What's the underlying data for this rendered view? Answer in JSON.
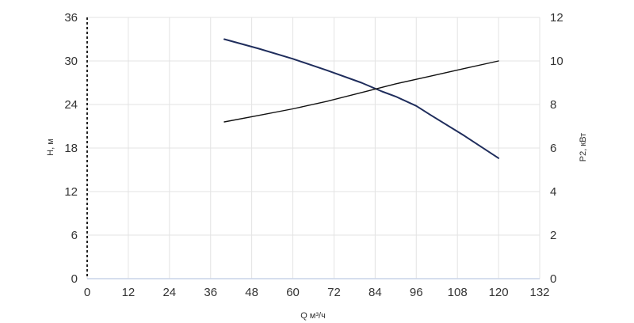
{
  "chart_data": {
    "type": "line",
    "xlabel": "Q м³/ч",
    "ylabel": "H, м",
    "y2label": "P2, кВт",
    "xlim": [
      0,
      132
    ],
    "ylim": [
      0,
      36
    ],
    "y2lim": [
      0,
      12
    ],
    "x_ticks": [
      "0",
      "12",
      "24",
      "36",
      "48",
      "60",
      "72",
      "84",
      "96",
      "108",
      "120",
      "132"
    ],
    "y_ticks": [
      "0",
      "6",
      "12",
      "18",
      "24",
      "30",
      "36"
    ],
    "y2_ticks": [
      "0",
      "2",
      "4",
      "6",
      "8",
      "10",
      "12"
    ],
    "grid": true,
    "series": [
      {
        "axis": "left",
        "color": "#1f2d5c",
        "x": [
          40,
          50,
          60,
          70,
          80,
          86,
          90,
          96,
          100,
          110,
          120
        ],
        "y": [
          33,
          31.7,
          30.3,
          28.7,
          27.0,
          25.8,
          25.1,
          23.8,
          22.6,
          19.7,
          16.6
        ]
      },
      {
        "axis": "right",
        "color": "#111111",
        "x": [
          40,
          50,
          60,
          70,
          80,
          90,
          100,
          110,
          120
        ],
        "y": [
          7.2,
          7.5,
          7.8,
          8.15,
          8.55,
          8.95,
          9.3,
          9.65,
          10.0
        ]
      }
    ]
  }
}
